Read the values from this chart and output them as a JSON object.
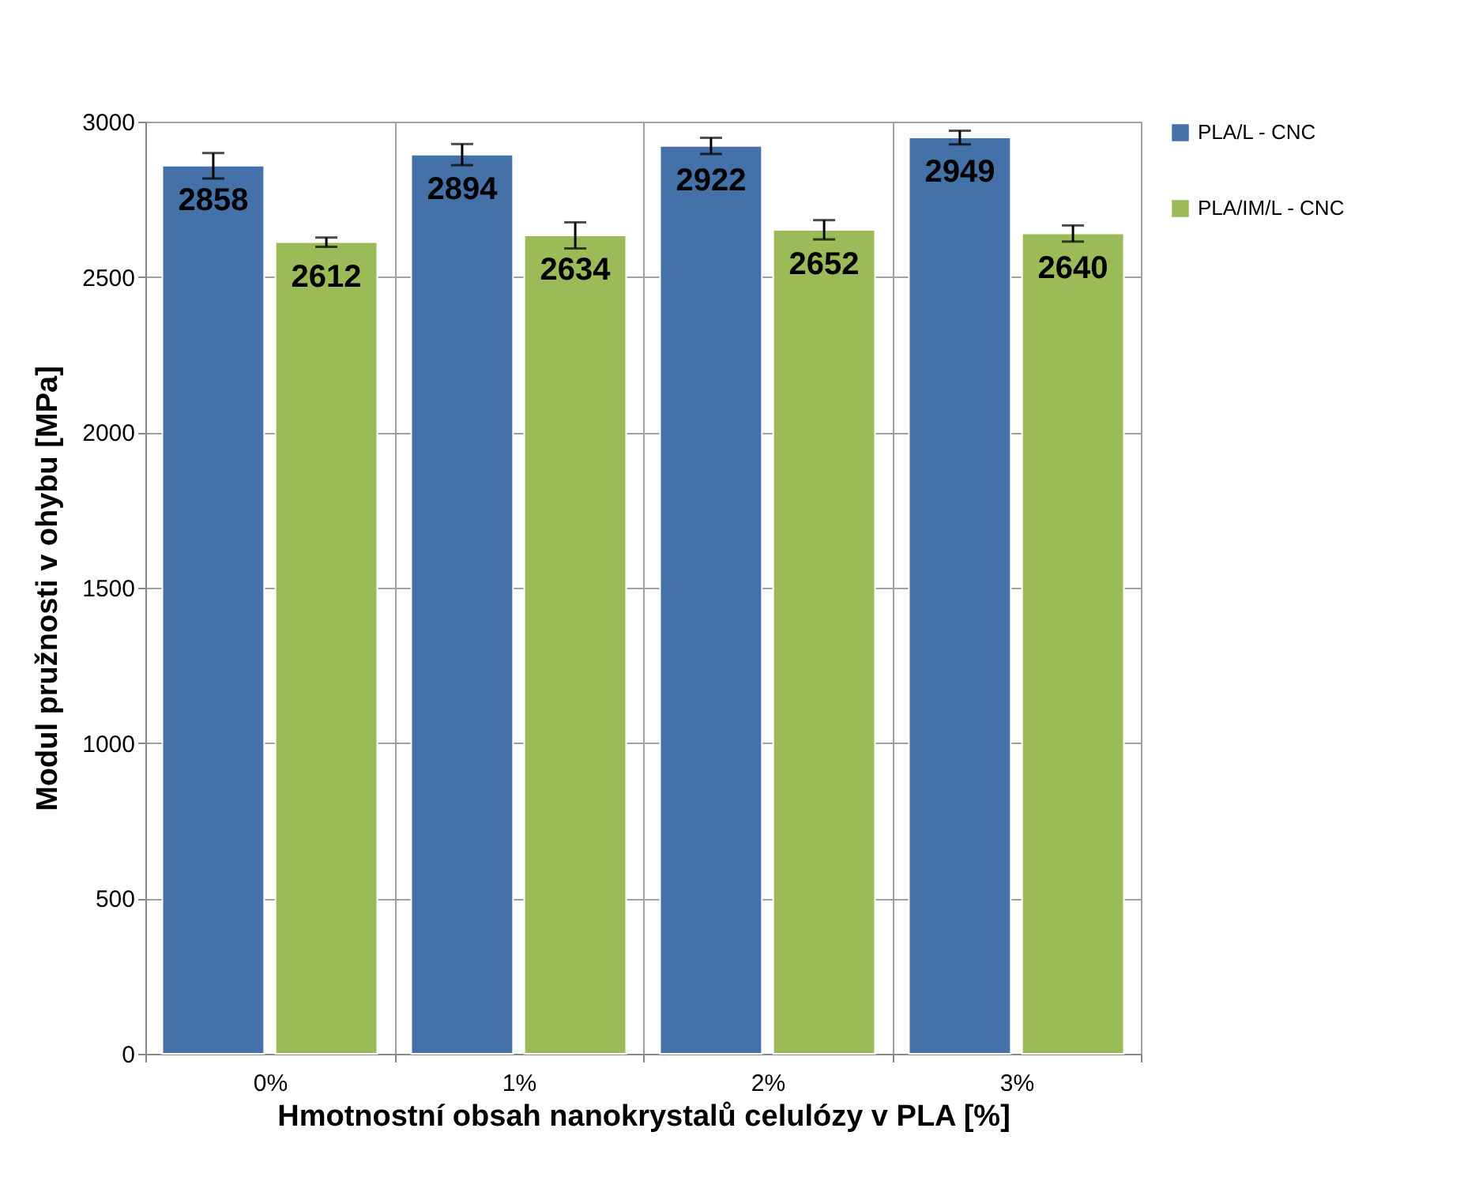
{
  "chart_data": {
    "type": "bar",
    "xlabel": "Hmotnostní obsah nanokrystalů celulózy v PLA [%]",
    "ylabel": "Modul pružnosti v ohybu [MPa]",
    "categories": [
      "0%",
      "1%",
      "2%",
      "3%"
    ],
    "series": [
      {
        "name": "PLA/L - CNC",
        "color": "#4472a8",
        "values": [
          2858,
          2894,
          2922,
          2949
        ],
        "errors": [
          41,
          34,
          26,
          22
        ]
      },
      {
        "name": "PLA/IM/L - CNC",
        "color": "#9bbb59",
        "values": [
          2612,
          2634,
          2652,
          2640
        ],
        "errors": [
          15,
          42,
          31,
          26
        ]
      }
    ],
    "ylim": [
      0,
      3000
    ],
    "yticks": [
      0,
      500,
      1000,
      1500,
      2000,
      2500,
      3000
    ],
    "grid": true,
    "legend": "right",
    "data_labels": true
  }
}
